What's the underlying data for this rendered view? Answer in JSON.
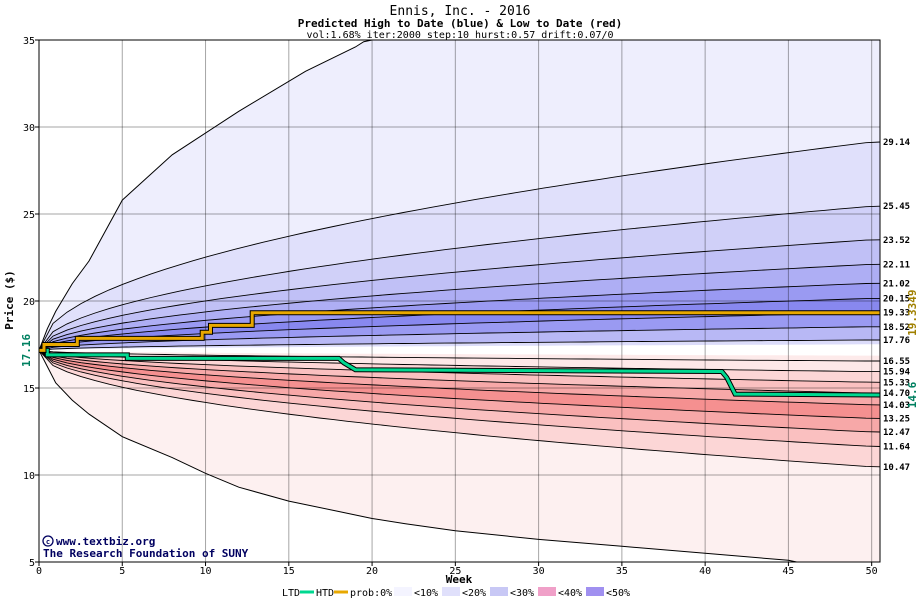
{
  "chart_data": {
    "type": "area",
    "title": "Ennis, Inc. - 2016",
    "subtitle": "Predicted High to Date (blue) &  Low to Date (red)",
    "params": "vol:1.68% iter:2000 step:10 hurst:0.57 drift:0.07/0",
    "xlabel": "Week",
    "ylabel": "Price ($)",
    "xlim": [
      0,
      50.5
    ],
    "ylim": [
      5,
      35
    ],
    "x_ticks": [
      0,
      5,
      10,
      15,
      20,
      25,
      30,
      35,
      40,
      45,
      50
    ],
    "y_ticks": [
      5,
      10,
      15,
      20,
      25,
      30,
      35
    ],
    "grid": true,
    "start_price": 17.16,
    "start_label": "17.16",
    "high_to_date_label": "19.3349",
    "low_to_date_label": "14.6",
    "right_labels": [
      "29.14",
      "25.45",
      "23.52",
      "22.11",
      "21.02",
      "20.15",
      "19.33",
      "18.52",
      "17.76",
      "16.55",
      "15.94",
      "15.33",
      "14.70",
      "14.03",
      "13.25",
      "12.47",
      "11.64",
      "10.47"
    ],
    "right_label_values": [
      29.14,
      25.45,
      23.52,
      22.11,
      21.02,
      20.15,
      19.33,
      18.52,
      17.76,
      16.55,
      15.94,
      15.33,
      14.7,
      14.03,
      13.25,
      12.47,
      11.64,
      10.47
    ],
    "outer_high": {
      "x": [
        0,
        0.5,
        1,
        2,
        3,
        5,
        8,
        12,
        16,
        19,
        19.5,
        20
      ],
      "y": [
        17.16,
        18.4,
        19.4,
        21.0,
        22.3,
        25.8,
        28.4,
        30.9,
        33.2,
        34.6,
        34.9,
        35.0
      ]
    },
    "outer_low": {
      "x": [
        0,
        1,
        2,
        3,
        5,
        8,
        10,
        12,
        15,
        18,
        20,
        22,
        25,
        30,
        35,
        40,
        45,
        45.5
      ],
      "y": [
        17.16,
        15.3,
        14.3,
        13.5,
        12.2,
        11.0,
        10.1,
        9.3,
        8.5,
        7.9,
        7.5,
        7.2,
        6.8,
        6.3,
        5.9,
        5.5,
        5.1,
        5.0
      ]
    },
    "high_to_date_series": {
      "name": "HTD",
      "x": [
        0,
        0.3,
        0.3,
        2.3,
        2.3,
        9.8,
        9.8,
        10.3,
        10.3,
        12.8,
        12.8,
        50.5
      ],
      "y": [
        17.16,
        17.16,
        17.5,
        17.5,
        17.85,
        17.85,
        18.2,
        18.2,
        18.6,
        18.6,
        19.33,
        19.33
      ]
    },
    "low_to_date_series": {
      "name": "LTD",
      "x": [
        0,
        0.5,
        0.5,
        5.3,
        5.3,
        18.0,
        18.3,
        18.3,
        19.0,
        19.0,
        41.0,
        41.3,
        41.3,
        41.8,
        41.8,
        50.5
      ],
      "y": [
        17.16,
        17.16,
        16.9,
        16.9,
        16.7,
        16.7,
        16.45,
        16.45,
        16.05,
        16.05,
        15.95,
        15.6,
        15.6,
        14.65,
        14.65,
        14.6
      ]
    },
    "colors": {
      "htd": "#00d890",
      "ltd": "#e8a800",
      "label_green": "#008060",
      "label_gold": "#a08000"
    },
    "legend": {
      "ltd_label": "LTD",
      "htd_label": "HTD",
      "prob_label": "prob:0%",
      "bins": [
        "<10%",
        "<20%",
        "<30%",
        "<40%",
        "<50%"
      ],
      "bin_colors": [
        "#f4f4ff",
        "#e0e0fb",
        "#c8c8f5",
        "#f0a0c8",
        "#a090f0"
      ]
    },
    "watermark": [
      "www.textbiz.org",
      "The Research Foundation of SUNY"
    ]
  }
}
